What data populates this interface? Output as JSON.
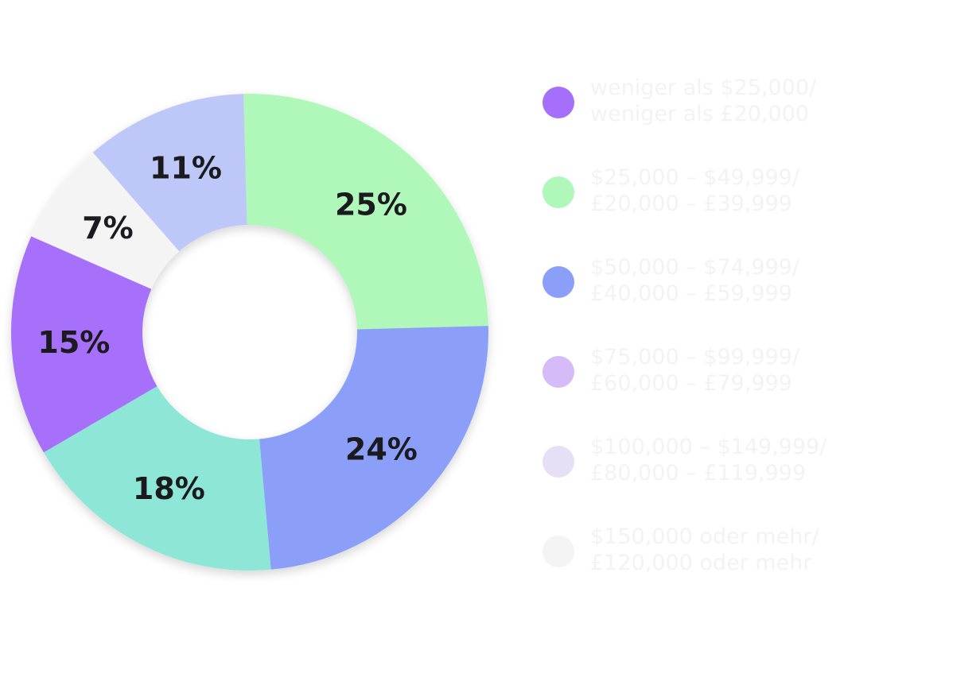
{
  "chart_data": {
    "type": "pie",
    "donut": true,
    "legend_position": "right",
    "slices": [
      {
        "label_lines": [
          "weniger als $25,000/",
          "weniger als £20,000"
        ],
        "value": 15,
        "value_label": "15%",
        "color": "#a66ffb"
      },
      {
        "label_lines": [
          "$25,000 – $49,999/",
          "£20,000 – £39,999"
        ],
        "value": 25,
        "value_label": "25%",
        "color": "#b0f7ba"
      },
      {
        "label_lines": [
          "$50,000 – $74,999/",
          "£40,000 – £59,999"
        ],
        "value": 24,
        "value_label": "24%",
        "color": "#8b9ff8"
      },
      {
        "label_lines": [
          "$75,000 – $99,999/",
          "£60,000 – £79,999"
        ],
        "value": 18,
        "value_label": "18%",
        "color": "#8de6d6"
      },
      {
        "label_lines": [
          "$100,000 – $149,999/",
          "£80,000 – £119,999"
        ],
        "value": 11,
        "value_label": "11%",
        "color": "#bec8f8"
      },
      {
        "label_lines": [
          "$150,000 oder mehr/",
          "£120,000 oder mehr"
        ],
        "value": 7,
        "value_label": "7%",
        "color": "#f4f4f4"
      }
    ],
    "legend_swatch_colors": [
      "#a66ffb",
      "#b0f7ba",
      "#8b9ff8",
      "#d5bbf8",
      "#e6e0f7",
      "#f4f4f4"
    ],
    "legend_text_color": "#f3f3f5",
    "label_color": "#1b1b1f"
  }
}
